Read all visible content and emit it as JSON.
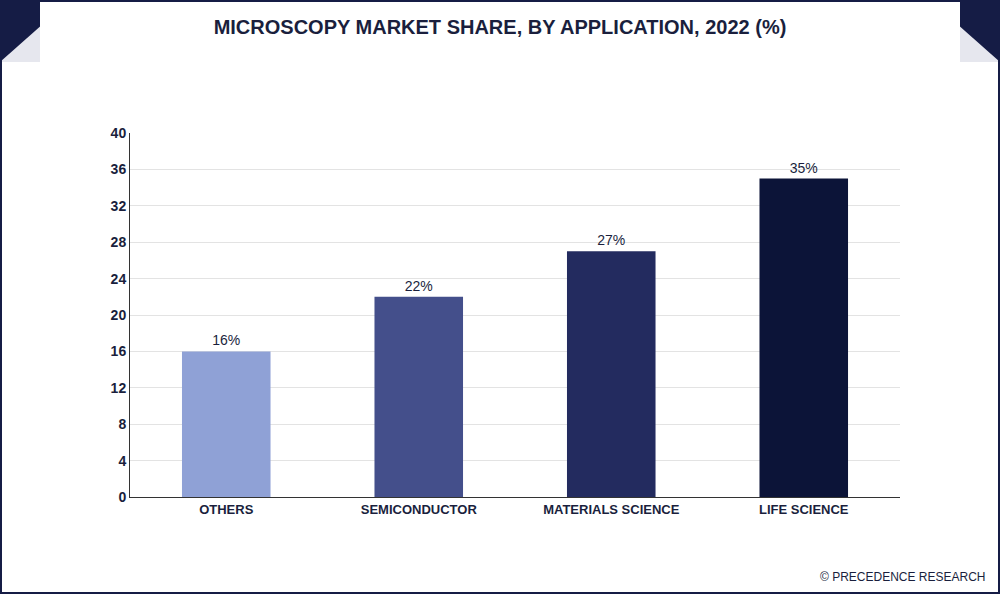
{
  "chart_data": {
    "type": "bar",
    "title": "MICROSCOPY MARKET SHARE, BY APPLICATION, 2022 (%)",
    "categories": [
      "OTHERS",
      "SEMICONDUCTOR",
      "MATERIALS SCIENCE",
      "LIFE SCIENCE"
    ],
    "values": [
      16,
      22,
      27,
      35
    ],
    "value_labels": [
      "16%",
      "22%",
      "27%",
      "35%"
    ],
    "colors": [
      "#8fa1d6",
      "#444f8b",
      "#232b5f",
      "#0c1438"
    ],
    "data_labels": true,
    "ylim": [
      0,
      40
    ],
    "yticks": [
      0,
      4,
      8,
      12,
      16,
      20,
      24,
      28,
      32,
      36,
      40
    ],
    "grid": true,
    "source": "© PRECEDENCE RESEARCH"
  }
}
